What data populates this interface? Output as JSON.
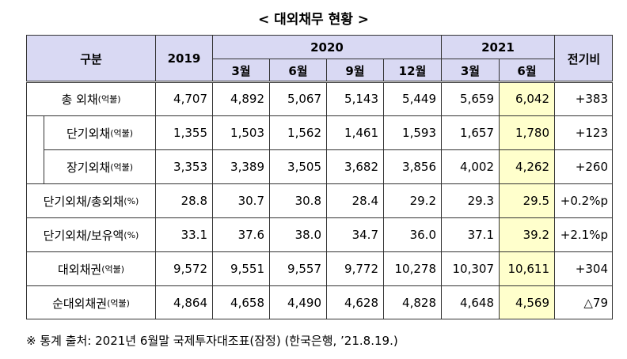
{
  "title": "< 대외채무 현황 >",
  "table": {
    "header": {
      "category": "구분",
      "year_2019": "2019",
      "year_2020": "2020",
      "year_2021": "2021",
      "change": "전기비",
      "months": [
        "3월",
        "6월",
        "9월",
        "12월",
        "3월",
        "6월"
      ]
    },
    "rows": [
      {
        "label": "총 외채",
        "unit": "(억불)",
        "values": [
          "4,707",
          "4,892",
          "5,067",
          "5,143",
          "5,449",
          "5,659",
          "6,042",
          "+383"
        ]
      },
      {
        "label": "단기외채",
        "unit": "(억불)",
        "values": [
          "1,355",
          "1,503",
          "1,562",
          "1,461",
          "1,593",
          "1,657",
          "1,780",
          "+123"
        ]
      },
      {
        "label": "장기외채",
        "unit": "(억불)",
        "values": [
          "3,353",
          "3,389",
          "3,505",
          "3,682",
          "3,856",
          "4,002",
          "4,262",
          "+260"
        ]
      },
      {
        "label": "단기외채/총외채",
        "unit": "(%)",
        "values": [
          "28.8",
          "30.7",
          "30.8",
          "28.4",
          "29.2",
          "29.3",
          "29.5",
          "+0.2%p"
        ]
      },
      {
        "label": "단기외채/보유액",
        "unit": "(%)",
        "values": [
          "33.1",
          "37.6",
          "38.0",
          "34.7",
          "36.0",
          "37.1",
          "39.2",
          "+2.1%p"
        ]
      },
      {
        "label": "대외채권",
        "unit": "(억불)",
        "values": [
          "9,572",
          "9,551",
          "9,557",
          "9,772",
          "10,278",
          "10,307",
          "10,611",
          "+304"
        ]
      },
      {
        "label": "순대외채권",
        "unit": "(억불)",
        "values": [
          "4,864",
          "4,658",
          "4,490",
          "4,628",
          "4,828",
          "4,648",
          "4,569",
          "△79"
        ]
      }
    ]
  },
  "footnote": "※ 통계 출처: 2021년 6월말 국제투자대조표(잠정) (한국은행, ’21.8.19.)"
}
